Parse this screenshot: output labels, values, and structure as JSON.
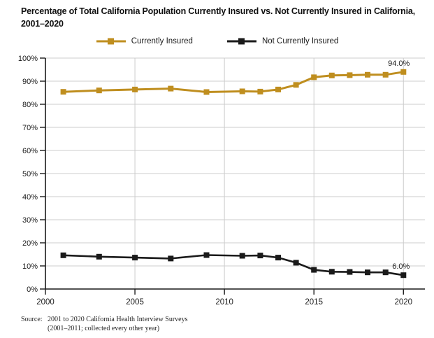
{
  "title": "Percentage of Total California Population Currently Insured vs. Not Currently Insured in California, 2001–2020",
  "chart_data": {
    "type": "line",
    "x": [
      2001,
      2003,
      2005,
      2007,
      2009,
      2011,
      2012,
      2013,
      2014,
      2015,
      2016,
      2017,
      2018,
      2019,
      2020
    ],
    "series": [
      {
        "name": "Currently Insured",
        "color": "#BF8E1F",
        "marker": "square",
        "values": [
          85.4,
          86.0,
          86.4,
          86.8,
          85.3,
          85.6,
          85.5,
          86.4,
          88.4,
          91.7,
          92.5,
          92.6,
          92.8,
          92.8,
          94.0
        ],
        "end_label": "94.0%"
      },
      {
        "name": "Not Currently Insured",
        "color": "#1A1A1A",
        "marker": "square",
        "values": [
          14.6,
          14.0,
          13.6,
          13.2,
          14.7,
          14.4,
          14.5,
          13.6,
          11.4,
          8.3,
          7.5,
          7.4,
          7.2,
          7.2,
          6.0
        ],
        "end_label": "6.0%"
      }
    ],
    "title": "Percentage of Total California Population Currently Insured vs. Not Currently Insured in California, 2001–2020",
    "xlabel": "",
    "ylabel": "",
    "xlim": [
      2000,
      2021.2
    ],
    "ylim": [
      0,
      100
    ],
    "ytick_step": 10,
    "ytick_suffix": "%",
    "xticks": [
      2000,
      2005,
      2010,
      2015,
      2020
    ],
    "grid": true,
    "gridline_color": "#cccccc",
    "axis_color": "#1a1a1a",
    "legend_position": "top-center"
  },
  "source": {
    "label": "Source:",
    "lines": [
      "2001 to 2020 California Health Interview Surveys",
      "(2001–2011; collected every other year)"
    ]
  }
}
